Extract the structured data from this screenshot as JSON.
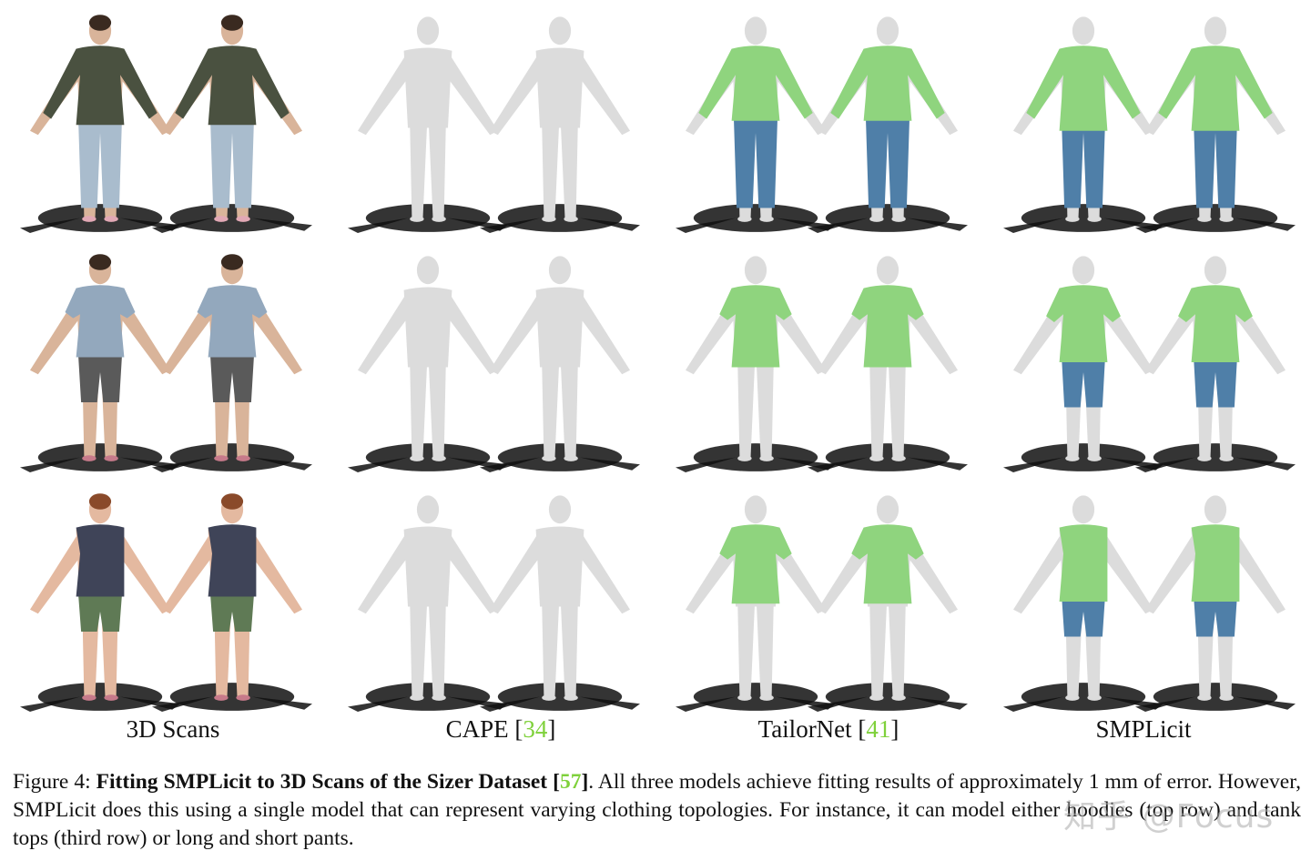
{
  "columns": [
    {
      "name": "3D Scans",
      "cite": ""
    },
    {
      "name": "CAPE [",
      "cite": "34",
      "close": "]"
    },
    {
      "name": "TailorNet [",
      "cite": "41",
      "close": "]"
    },
    {
      "name": "SMPLicit",
      "cite": ""
    }
  ],
  "rows": [
    "hoodie",
    "t-shirt",
    "tank-top"
  ],
  "caption": {
    "prefix": "Figure 4: ",
    "bold": "Fitting SMPLicit to 3D Scans of the Sizer Dataset [",
    "cite": "57",
    "bold_close": "]",
    "text": ". All three models achieve fitting results of approximately 1 mm of error. However, SMPLicit does this using a single model that can represent varying clothing topologies. For instance, it can model either hoodies (top row) and tank tops (third row) or long and short pants."
  },
  "watermark": "知乎 @Focus",
  "colors": {
    "scan_hoodie": "#4a5140",
    "scan_tshirt": "#93a8bd",
    "scan_tank": "#3f4458",
    "scan_shorts_dark": "#5a5a5a",
    "scan_shorts_green": "#5f7a55",
    "scan_jeans": "#a9bccd",
    "body_gray": "#dcdcdc",
    "garment_green": "#8fd47e",
    "garment_blue": "#4f7fa8",
    "shadow": "#111111",
    "citation_green": "#7fd13b"
  }
}
